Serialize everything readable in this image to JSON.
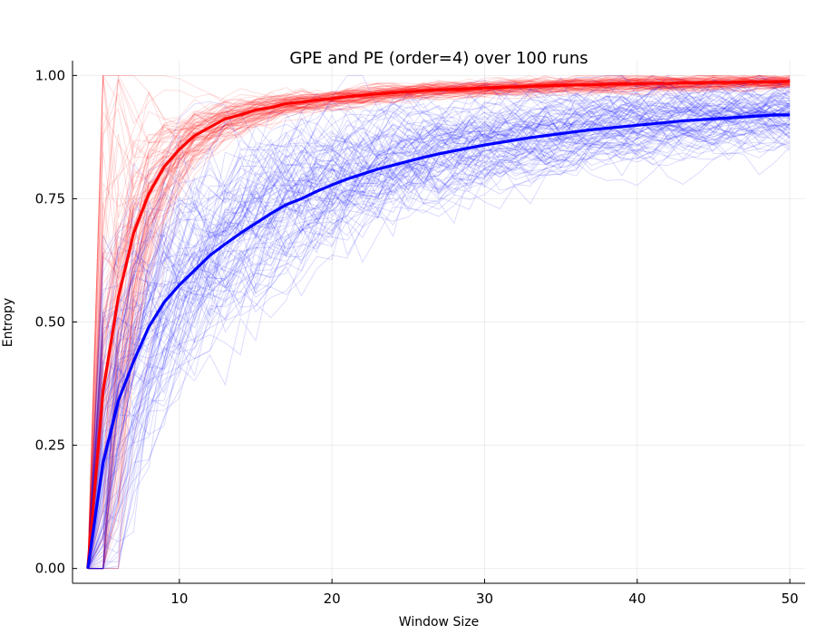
{
  "chart_data": {
    "type": "line",
    "title": "GPE and PE (order=4) over 100 runs",
    "xlabel": "Window Size",
    "ylabel": "Entropy",
    "xlim": [
      3,
      51
    ],
    "ylim": [
      -0.03,
      1.03
    ],
    "xticks": [
      10,
      20,
      30,
      40,
      50
    ],
    "yticks": [
      0.0,
      0.25,
      0.5,
      0.75,
      1.0
    ],
    "ytick_labels": [
      "0.00",
      "0.25",
      "0.50",
      "0.75",
      "1.00"
    ],
    "grid": true,
    "legend": "none",
    "runs": 100,
    "x": [
      4,
      5,
      6,
      7,
      8,
      9,
      10,
      11,
      12,
      13,
      14,
      15,
      16,
      17,
      18,
      19,
      20,
      21,
      22,
      23,
      24,
      25,
      26,
      27,
      28,
      29,
      30,
      31,
      32,
      33,
      34,
      35,
      36,
      37,
      38,
      39,
      40,
      41,
      42,
      43,
      44,
      45,
      46,
      47,
      48,
      49,
      50
    ],
    "series": [
      {
        "color": "#ff0000",
        "values": [
          0.0,
          0.36,
          0.55,
          0.68,
          0.76,
          0.815,
          0.85,
          0.878,
          0.895,
          0.912,
          0.92,
          0.93,
          0.935,
          0.943,
          0.946,
          0.95,
          0.953,
          0.957,
          0.96,
          0.963,
          0.965,
          0.967,
          0.969,
          0.971,
          0.972,
          0.973,
          0.975,
          0.976,
          0.977,
          0.978,
          0.979,
          0.98,
          0.981,
          0.981,
          0.982,
          0.983,
          0.983,
          0.984,
          0.984,
          0.985,
          0.985,
          0.986,
          0.986,
          0.987,
          0.987,
          0.987,
          0.988
        ]
      },
      {
        "color": "#0000ff",
        "values": [
          0.0,
          0.215,
          0.34,
          0.42,
          0.49,
          0.54,
          0.575,
          0.605,
          0.635,
          0.658,
          0.68,
          0.7,
          0.72,
          0.738,
          0.75,
          0.765,
          0.778,
          0.79,
          0.8,
          0.81,
          0.818,
          0.826,
          0.834,
          0.841,
          0.847,
          0.853,
          0.859,
          0.864,
          0.869,
          0.874,
          0.878,
          0.882,
          0.886,
          0.89,
          0.893,
          0.896,
          0.899,
          0.902,
          0.905,
          0.908,
          0.91,
          0.912,
          0.914,
          0.916,
          0.918,
          0.92,
          0.92
        ]
      }
    ]
  }
}
